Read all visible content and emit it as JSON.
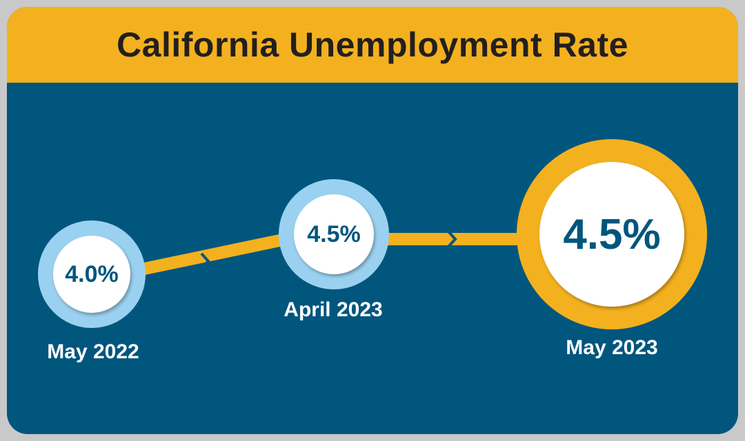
{
  "title": "California Unemployment Rate",
  "colors": {
    "header": "#f3b11f",
    "background": "#01567e",
    "ring_small": "#9bd1f0",
    "ring_large": "#f3b11f",
    "text": "#01567e"
  },
  "chart_data": {
    "type": "line",
    "title": "California Unemployment Rate",
    "categories": [
      "May 2022",
      "April 2023",
      "May 2023"
    ],
    "values": [
      4.0,
      4.5,
      4.5
    ],
    "value_labels": [
      "4.0%",
      "4.5%",
      "4.5%"
    ],
    "unit": "%"
  }
}
